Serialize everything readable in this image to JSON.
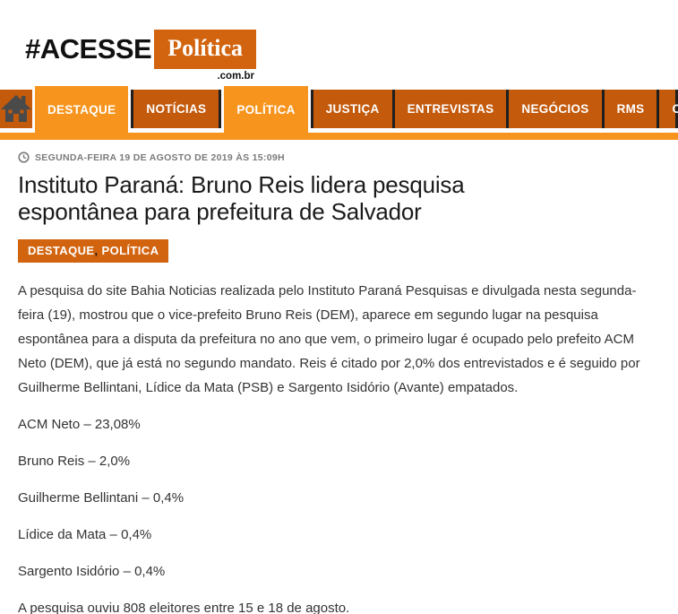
{
  "logo": {
    "hash_text": "#ACESSE",
    "box_text": "Política",
    "domain": ".com.br"
  },
  "nav": {
    "items": [
      {
        "label": "DESTAQUE",
        "active": true
      },
      {
        "label": "NOTÍCIAS",
        "active": false
      },
      {
        "label": "POLÍTICA",
        "active": true
      },
      {
        "label": "JUSTIÇA",
        "active": false
      },
      {
        "label": "ENTREVISTAS",
        "active": false
      },
      {
        "label": "NEGÓCIOS",
        "active": false
      },
      {
        "label": "RMS",
        "active": false
      },
      {
        "label": "CONCURSOS",
        "active": false
      }
    ],
    "home_icon": "home-icon"
  },
  "article": {
    "date_label": "SEGUNDA-FEIRA 19 DE AGOSTO DE 2019 ÀS 15:09H",
    "title": "Instituto Paraná: Bruno Reis lidera pesquisa espontânea para prefeitura de Salvador",
    "tags": [
      "DESTAQUE",
      "POLÍTICA"
    ],
    "tag_separator": ",",
    "body": "A pesquisa do site Bahia Noticias realizada pelo Instituto Paraná Pesquisas e divulgada nesta segunda-feira (19), mostrou que o vice-prefeito Bruno Reis (DEM), aparece em segundo lugar na pesquisa espontânea para a disputa da prefeitura no ano que vem, o primeiro lugar é ocupado pelo prefeito ACM Neto (DEM), que já está no segundo mandato. Reis é citado por 2,0% dos entrevistados e é seguido por Guilherme Bellintani, Lídice da Mata (PSB) e Sargento Isidório (Avante) empatados.",
    "results": [
      {
        "name": "ACM Neto",
        "percent": "23,08%"
      },
      {
        "name": "Bruno Reis",
        "percent": "2,0%"
      },
      {
        "name": "Guilherme Bellintani",
        "percent": "0,4%"
      },
      {
        "name": "Lídice da Mata",
        "percent": "0,4%"
      },
      {
        "name": "Sargento Isidório",
        "percent": "0,4%"
      }
    ],
    "footer_line": "A pesquisa ouviu 808 eleitores entre 15 e 18 de agosto."
  },
  "colors": {
    "nav_dark": "#c35a0c",
    "nav_bright": "#f7941d",
    "logo_box": "#d2640f",
    "badge": "#d2640f",
    "separator": "#1f1f1f",
    "body_text": "#333333",
    "date_text": "#7b7b7b"
  }
}
